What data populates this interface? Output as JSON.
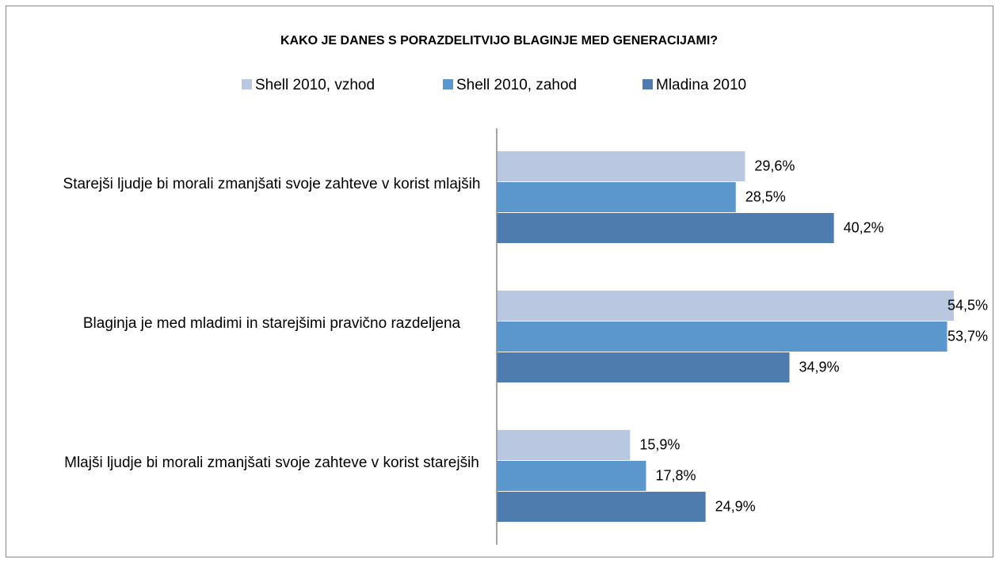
{
  "chart_data": {
    "type": "bar",
    "orientation": "horizontal",
    "title": "KAKO JE DANES S PORAZDELITVIJO BLAGINJE MED GENERACIJAMI?",
    "categories": [
      "Starejši ljudje bi morali zmanjšati svoje zahteve v korist mlajših",
      "Blaginja je med mladimi in starejšimi pravično razdeljena",
      "Mlajši ljudje bi morali zmanjšati svoje zahteve v korist starejših"
    ],
    "series": [
      {
        "name": "Shell 2010, vzhod",
        "color": "#b9c7e0",
        "values": [
          29.6,
          54.5,
          15.9
        ],
        "value_labels": [
          "29,6%",
          "54,5%",
          "15,9%"
        ]
      },
      {
        "name": "Shell 2010, zahod",
        "color": "#5b97cc",
        "values": [
          28.5,
          53.7,
          17.8
        ],
        "value_labels": [
          "28,5%",
          "53,7%",
          "17,8%"
        ]
      },
      {
        "name": "Mladina 2010",
        "color": "#4f7cae",
        "values": [
          40.2,
          34.9,
          24.9
        ],
        "value_labels": [
          "40,2%",
          "34,9%",
          "24,9%"
        ]
      }
    ],
    "legend": "top"
  }
}
